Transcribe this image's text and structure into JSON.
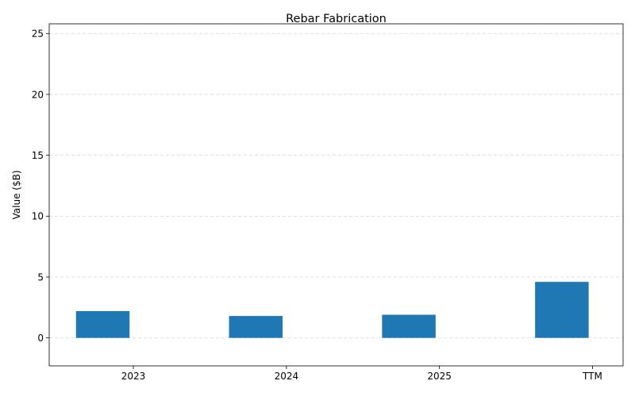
{
  "chart_data": {
    "type": "bar",
    "title": "Rebar Fabrication",
    "xlabel": "",
    "ylabel": "Value ($B)",
    "categories": [
      "2023",
      "2024",
      "2025",
      "TTM"
    ],
    "values": [
      2.2,
      1.8,
      1.9,
      4.6
    ],
    "bar_color": "#1f77b4",
    "ylim": [
      -2.3,
      25.8
    ],
    "yticks": [
      0,
      5,
      10,
      15,
      20,
      25
    ],
    "grid": true,
    "legend": "none"
  }
}
